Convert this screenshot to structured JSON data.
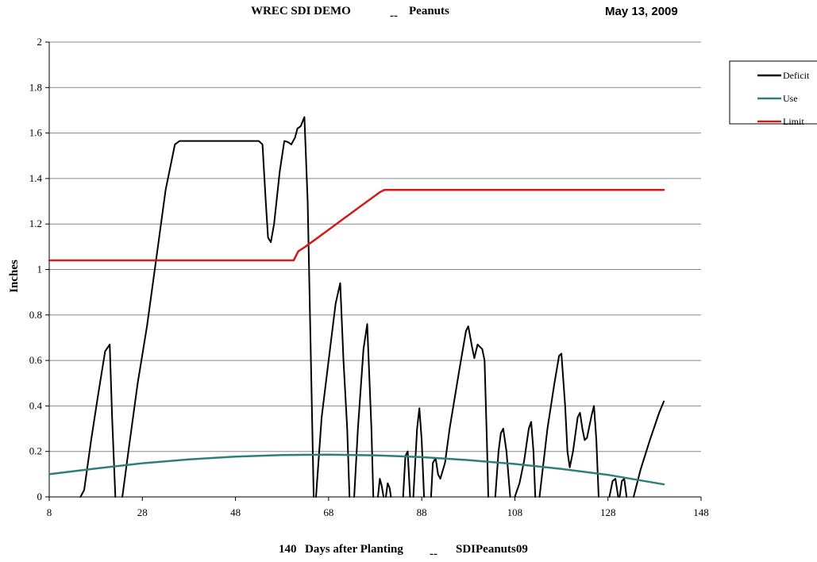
{
  "header": {
    "app_title": "WREC SDI DEMO",
    "separator": "--",
    "crop": "Peanuts",
    "date": "May 13, 2009"
  },
  "footer": {
    "days": "140",
    "days_label": "Days after Planting",
    "separator": "--",
    "file": "SDIPeanuts09"
  },
  "chart_data": {
    "type": "line",
    "ylabel": "Inches",
    "xlabel": "",
    "xlim": [
      8,
      148
    ],
    "ylim": [
      0,
      2
    ],
    "x_ticks": [
      "8",
      "28",
      "48",
      "68",
      "88",
      "108",
      "128",
      "148"
    ],
    "y_ticks": [
      "0",
      "0.2",
      "0.4",
      "0.6",
      "0.8",
      "1",
      "1.2",
      "1.4",
      "1.6",
      "1.8",
      "2"
    ],
    "grid": "horizontal",
    "legend_position": "right",
    "series": [
      {
        "name": "Deficit",
        "color": "#000000",
        "segments": [
          [
            [
              14.7,
              0
            ],
            [
              15.5,
              0.03
            ],
            [
              17,
              0.25
            ],
            [
              18.5,
              0.45
            ],
            [
              20,
              0.64
            ],
            [
              21,
              0.67
            ],
            [
              21.5,
              0.35
            ],
            [
              22.2,
              0
            ]
          ],
          [
            [
              23.7,
              0
            ],
            [
              25,
              0.2
            ],
            [
              27,
              0.5
            ],
            [
              29,
              0.75
            ],
            [
              31,
              1.05
            ],
            [
              33,
              1.35
            ],
            [
              35,
              1.55
            ],
            [
              36,
              1.565
            ],
            [
              41,
              1.565
            ],
            [
              48,
              1.565
            ],
            [
              53,
              1.565
            ],
            [
              53.8,
              1.55
            ],
            [
              54.5,
              1.3
            ],
            [
              55,
              1.14
            ],
            [
              55.6,
              1.12
            ],
            [
              56.3,
              1.2
            ],
            [
              57.5,
              1.43
            ],
            [
              58.5,
              1.565
            ],
            [
              59.3,
              1.56
            ],
            [
              60,
              1.55
            ],
            [
              60.8,
              1.58
            ],
            [
              61.3,
              1.62
            ],
            [
              62,
              1.63
            ],
            [
              62.8,
              1.67
            ],
            [
              63.5,
              1.3
            ],
            [
              64.2,
              0.6
            ],
            [
              64.8,
              0
            ]
          ],
          [
            [
              65.3,
              0
            ],
            [
              66.5,
              0.35
            ],
            [
              68,
              0.6
            ],
            [
              69.5,
              0.85
            ],
            [
              70.5,
              0.94
            ],
            [
              71.2,
              0.6
            ],
            [
              72,
              0.3
            ],
            [
              72.5,
              0
            ]
          ],
          [
            [
              73.5,
              0
            ],
            [
              74.3,
              0.3
            ],
            [
              75.5,
              0.65
            ],
            [
              76.3,
              0.76
            ],
            [
              77.2,
              0.3
            ],
            [
              77.6,
              0
            ]
          ],
          [
            [
              78.6,
              0
            ],
            [
              79,
              0.08
            ],
            [
              79.4,
              0.05
            ],
            [
              79.8,
              0
            ]
          ],
          [
            [
              80.3,
              0
            ],
            [
              80.7,
              0.06
            ],
            [
              81.1,
              0.04
            ],
            [
              81.4,
              0
            ]
          ],
          [
            [
              84,
              0
            ],
            [
              84.5,
              0.18
            ],
            [
              85,
              0.2
            ],
            [
              85.5,
              0
            ]
          ],
          [
            [
              86.2,
              0
            ],
            [
              87,
              0.3
            ],
            [
              87.5,
              0.39
            ],
            [
              88,
              0.25
            ],
            [
              88.5,
              0
            ]
          ],
          [
            [
              90,
              0
            ],
            [
              90.4,
              0.15
            ],
            [
              91,
              0.17
            ],
            [
              91.5,
              0.1
            ],
            [
              92,
              0.08
            ],
            [
              93,
              0.15
            ],
            [
              94,
              0.3
            ],
            [
              96,
              0.55
            ],
            [
              97.5,
              0.73
            ],
            [
              98,
              0.75
            ],
            [
              98.8,
              0.66
            ],
            [
              99.3,
              0.61
            ],
            [
              100,
              0.67
            ],
            [
              101,
              0.65
            ],
            [
              101.5,
              0.6
            ],
            [
              102,
              0.25
            ],
            [
              102.3,
              0
            ]
          ],
          [
            [
              103.8,
              0
            ],
            [
              104.5,
              0.2
            ],
            [
              105,
              0.28
            ],
            [
              105.5,
              0.3
            ],
            [
              106.2,
              0.2
            ],
            [
              107,
              0
            ]
          ],
          [
            [
              108,
              0
            ],
            [
              109,
              0.06
            ],
            [
              110,
              0.16
            ],
            [
              111,
              0.3
            ],
            [
              111.5,
              0.33
            ],
            [
              112,
              0.2
            ],
            [
              112.4,
              0
            ]
          ],
          [
            [
              113.3,
              0
            ],
            [
              115,
              0.3
            ],
            [
              116.5,
              0.5
            ],
            [
              117.5,
              0.62
            ],
            [
              118,
              0.63
            ],
            [
              118.8,
              0.4
            ],
            [
              119.3,
              0.2
            ],
            [
              119.8,
              0.13
            ],
            [
              120.5,
              0.2
            ],
            [
              121.5,
              0.35
            ],
            [
              122,
              0.37
            ],
            [
              122.5,
              0.3
            ],
            [
              123,
              0.25
            ],
            [
              123.5,
              0.26
            ],
            [
              124.5,
              0.36
            ],
            [
              125,
              0.4
            ],
            [
              125.5,
              0.25
            ],
            [
              126,
              0
            ]
          ],
          [
            [
              128.3,
              0
            ],
            [
              129,
              0.07
            ],
            [
              129.6,
              0.08
            ],
            [
              130.2,
              0
            ]
          ],
          [
            [
              130.5,
              0
            ],
            [
              131,
              0.07
            ],
            [
              131.5,
              0.08
            ],
            [
              132,
              0
            ]
          ],
          [
            [
              133.5,
              0
            ],
            [
              135,
              0.12
            ],
            [
              137,
              0.25
            ],
            [
              139,
              0.37
            ],
            [
              140,
              0.42
            ]
          ]
        ]
      },
      {
        "name": "Use",
        "color": "#2e7f7a",
        "points": [
          [
            8,
            0.1
          ],
          [
            18,
            0.125
          ],
          [
            28,
            0.148
          ],
          [
            38,
            0.165
          ],
          [
            48,
            0.177
          ],
          [
            58,
            0.184
          ],
          [
            68,
            0.186
          ],
          [
            78,
            0.183
          ],
          [
            88,
            0.175
          ],
          [
            98,
            0.162
          ],
          [
            108,
            0.145
          ],
          [
            118,
            0.123
          ],
          [
            128,
            0.097
          ],
          [
            140,
            0.055
          ]
        ]
      },
      {
        "name": "Limit",
        "color": "#d11a1a",
        "points": [
          [
            8,
            1.04
          ],
          [
            60.5,
            1.04
          ],
          [
            61.5,
            1.08
          ],
          [
            63,
            1.1
          ],
          [
            65,
            1.13
          ],
          [
            67,
            1.16
          ],
          [
            69,
            1.19
          ],
          [
            71,
            1.22
          ],
          [
            73,
            1.25
          ],
          [
            75,
            1.28
          ],
          [
            77,
            1.31
          ],
          [
            79,
            1.34
          ],
          [
            80,
            1.35
          ],
          [
            100,
            1.35
          ],
          [
            140,
            1.35
          ]
        ]
      }
    ]
  }
}
